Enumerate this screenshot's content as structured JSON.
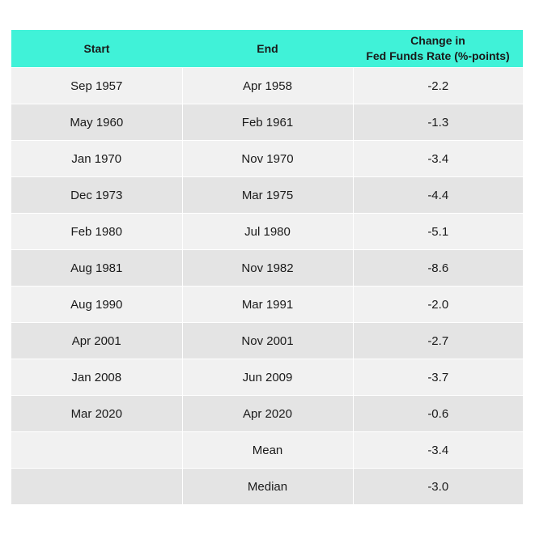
{
  "table": {
    "headers": {
      "start": "Start",
      "end": "End",
      "change_line1": "Change in",
      "change_line2": "Fed Funds Rate (%-points)"
    },
    "rows": [
      {
        "start": "Sep 1957",
        "end": "Apr 1958",
        "change": "-2.2"
      },
      {
        "start": "May 1960",
        "end": "Feb 1961",
        "change": "-1.3"
      },
      {
        "start": "Jan 1970",
        "end": "Nov 1970",
        "change": "-3.4"
      },
      {
        "start": "Dec 1973",
        "end": "Mar 1975",
        "change": "-4.4"
      },
      {
        "start": "Feb 1980",
        "end": "Jul 1980",
        "change": "-5.1"
      },
      {
        "start": "Aug 1981",
        "end": "Nov 1982",
        "change": "-8.6"
      },
      {
        "start": "Aug 1990",
        "end": "Mar 1991",
        "change": "-2.0"
      },
      {
        "start": "Apr 2001",
        "end": "Nov 2001",
        "change": "-2.7"
      },
      {
        "start": "Jan 2008",
        "end": "Jun 2009",
        "change": "-3.7"
      },
      {
        "start": "Mar 2020",
        "end": "Apr 2020",
        "change": "-0.6"
      },
      {
        "start": "",
        "end": "Mean",
        "change": "-3.4"
      },
      {
        "start": "",
        "end": "Median",
        "change": "-3.0"
      }
    ]
  },
  "colors": {
    "header_bg": "#40f2d8",
    "row_light": "#f1f1f1",
    "row_dark": "#e4e4e4"
  }
}
